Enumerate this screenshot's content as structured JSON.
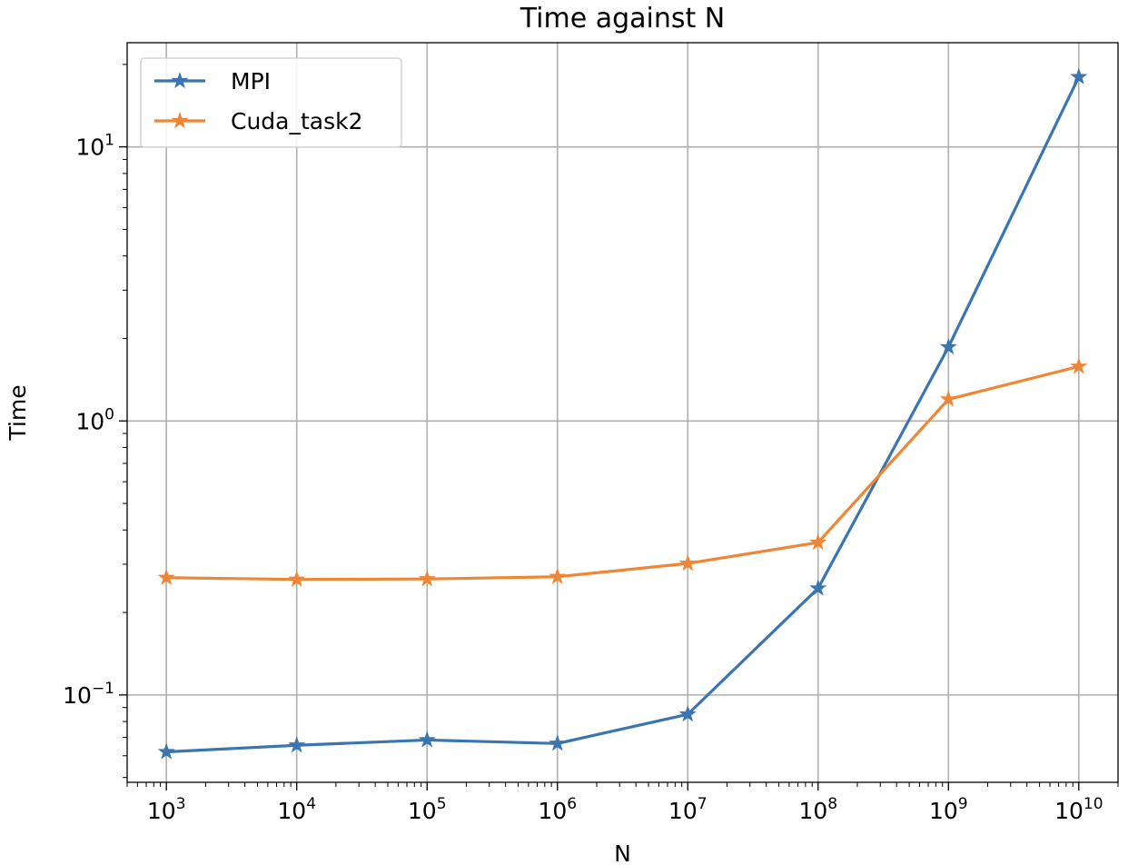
{
  "chart_data": {
    "type": "line",
    "title": "Time against N",
    "xlabel": "N",
    "ylabel": "Time",
    "xscale": "log",
    "yscale": "log",
    "xlim": [
      500,
      20000000000
    ],
    "ylim": [
      0.048,
      24
    ],
    "grid": true,
    "legend_position": "top-left",
    "x": [
      1000,
      10000,
      100000,
      1000000,
      10000000,
      100000000,
      1000000000,
      10000000000
    ],
    "x_ticks": [
      {
        "base": "10",
        "exp": "3"
      },
      {
        "base": "10",
        "exp": "4"
      },
      {
        "base": "10",
        "exp": "5"
      },
      {
        "base": "10",
        "exp": "6"
      },
      {
        "base": "10",
        "exp": "7"
      },
      {
        "base": "10",
        "exp": "8"
      },
      {
        "base": "10",
        "exp": "9"
      },
      {
        "base": "10",
        "exp": "10"
      }
    ],
    "y_ticks": [
      {
        "base": "10",
        "exp": "1",
        "value": 10
      },
      {
        "base": "10",
        "exp": "0",
        "value": 1
      },
      {
        "base": "10",
        "exp": "−1",
        "value": 0.1
      }
    ],
    "series": [
      {
        "name": "MPI",
        "color": "#3a75af",
        "marker": "star",
        "values": [
          0.062,
          0.0655,
          0.0685,
          0.0665,
          0.085,
          0.245,
          1.86,
          18.0
        ]
      },
      {
        "name": "Cuda_task2",
        "color": "#ef8636",
        "marker": "star",
        "values": [
          0.268,
          0.264,
          0.265,
          0.27,
          0.302,
          0.36,
          1.2,
          1.58
        ]
      }
    ]
  }
}
